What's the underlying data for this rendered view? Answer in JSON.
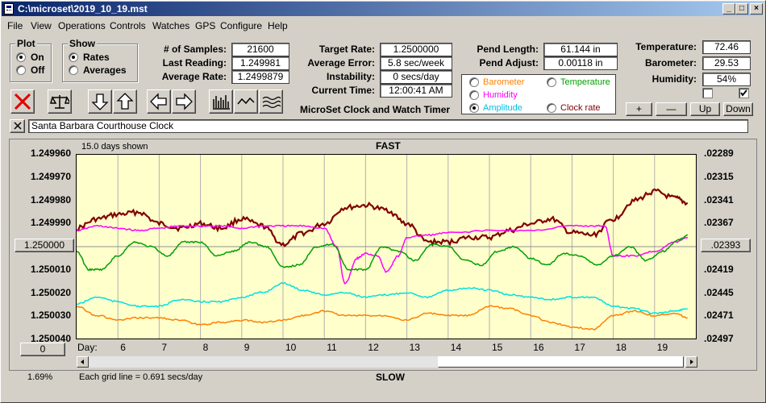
{
  "window": {
    "title": "C:\\microset\\2019_10_19.mst",
    "minimize": "_",
    "maximize": "□",
    "close": "×"
  },
  "menu": [
    "File",
    "View",
    "Operations",
    "Controls",
    "Watches",
    "GPS",
    "Configure",
    "Help"
  ],
  "plot_group": {
    "label": "Plot",
    "on": "On",
    "off": "Off",
    "selected": "On"
  },
  "show_group": {
    "label": "Show",
    "rates": "Rates",
    "averages": "Averages",
    "selected": "Rates"
  },
  "stats": {
    "samples_label": "# of Samples:",
    "samples": "21600",
    "last_label": "Last Reading:",
    "last": "1.249981",
    "avg_label": "Average Rate:",
    "avg": "1.2499879"
  },
  "targets": {
    "target_label": "Target Rate:",
    "target": "1.2500000",
    "avgerr_label": "Average Error:",
    "avgerr": "5.8 sec/week",
    "instab_label": "Instability:",
    "instab": "0 secs/day",
    "time_label": "Current Time:",
    "time": "12:00:41 AM"
  },
  "app_name": "MicroSet Clock and Watch Timer",
  "pendulum": {
    "length_label": "Pend Length:",
    "length": "61.144 in",
    "adjust_label": "Pend Adjust:",
    "adjust": "0.00118 in"
  },
  "environment": {
    "temp_label": "Temperature:",
    "temp": "72.46",
    "baro_label": "Barometer:",
    "baro": "29.53",
    "hum_label": "Humidity:",
    "hum": "54%"
  },
  "series_select": {
    "barometer": "Barometer",
    "temperature": "Temperature",
    "humidity": "Humidity",
    "amplitude": "Amplitude",
    "clock_rate": "Clock rate",
    "selected": "Amplitude"
  },
  "scale_buttons": {
    "plus": "+",
    "minus": "—",
    "up": "Up",
    "down": "Down"
  },
  "watch_name": "Santa Barbara Courthouse Clock",
  "chart_data": {
    "type": "line",
    "top_label": "15.0 days shown",
    "fast_label": "FAST",
    "slow_label": "SLOW",
    "grid_note": "Each grid line = 0.691 secs/day",
    "left_axis": [
      "1.249960",
      "1.249970",
      "1.249980",
      "1.249990",
      "1.250000",
      "1.250010",
      "1.250020",
      "1.250030",
      "1.250040"
    ],
    "left_center_button": "1.250000",
    "right_axis": [
      ".02289",
      ".02315",
      ".02341",
      ".02367",
      ".02393",
      ".02419",
      ".02445",
      ".02471",
      ".02497"
    ],
    "right_center_button": ".02393",
    "x_label": "Day:",
    "x_ticks": [
      "6",
      "7",
      "8",
      "9",
      "10",
      "11",
      "12",
      "13",
      "14",
      "15",
      "16",
      "17",
      "18",
      "19"
    ],
    "x_range": [
      5,
      20
    ],
    "ylim": [
      1.24996,
      1.25004
    ],
    "zoom": "1.69%",
    "left_bottom_button": "0",
    "series": [
      {
        "name": "Clock rate",
        "color": "#800000",
        "x": [
          5.0,
          5.5,
          6.0,
          6.5,
          7.0,
          7.5,
          8.0,
          8.5,
          9.0,
          9.5,
          10.0,
          10.5,
          11.0,
          11.5,
          12.0,
          12.5,
          13.0,
          13.5,
          14.0,
          14.5,
          15.0,
          15.5,
          16.0,
          16.5,
          17.0,
          17.5,
          18.0,
          18.5,
          19.0,
          19.5,
          19.8
        ],
        "values": [
          1.249992,
          1.249988,
          1.249986,
          1.249985,
          1.24999,
          1.249992,
          1.24999,
          1.249992,
          1.249988,
          1.249991,
          1.249999,
          1.249994,
          1.24999,
          1.249983,
          1.249982,
          1.249984,
          1.24999,
          1.249998,
          1.249998,
          1.249996,
          1.249996,
          1.249993,
          1.24999,
          1.249988,
          1.249994,
          1.249995,
          1.249988,
          1.24998,
          1.249976,
          1.249979,
          1.249981
        ]
      },
      {
        "name": "Humidity",
        "color": "#ff00ff",
        "x": [
          5.0,
          5.5,
          6.0,
          6.5,
          7.0,
          7.5,
          8.0,
          8.5,
          9.0,
          9.5,
          10.0,
          10.5,
          11.0,
          11.3,
          11.5,
          11.8,
          12.0,
          12.3,
          12.5,
          12.8,
          13.0,
          13.5,
          14.0,
          15.0,
          16.0,
          17.0,
          17.5,
          17.8,
          18.0,
          18.5,
          19.0,
          19.5,
          19.8
        ],
        "values": [
          1.249993,
          1.249991,
          1.249992,
          1.249993,
          1.249992,
          1.249991,
          1.249991,
          1.249991,
          1.249992,
          1.249991,
          1.249991,
          1.249991,
          1.249992,
          1.25,
          1.250016,
          1.250005,
          1.250003,
          1.250004,
          1.250011,
          1.250004,
          1.249996,
          1.249995,
          1.249994,
          1.249993,
          1.249993,
          1.249991,
          1.249991,
          1.249991,
          1.250004,
          1.250004,
          1.250002,
          1.249998,
          1.249996
        ]
      },
      {
        "name": "Temperature",
        "color": "#00a000",
        "x": [
          5.0,
          5.3,
          5.6,
          6.0,
          6.4,
          6.8,
          7.2,
          7.6,
          8.0,
          8.4,
          8.8,
          9.2,
          9.6,
          10.0,
          10.4,
          10.8,
          11.2,
          11.6,
          12.0,
          12.4,
          12.8,
          13.2,
          13.6,
          14.0,
          14.4,
          14.8,
          15.2,
          15.6,
          16.0,
          16.4,
          16.8,
          17.2,
          17.6,
          18.0,
          18.4,
          18.8,
          19.2,
          19.6,
          19.8
        ],
        "values": [
          1.250002,
          1.25001,
          1.25001,
          1.250004,
          1.249998,
          1.25,
          1.250004,
          1.249998,
          1.249998,
          1.250004,
          1.250002,
          1.249998,
          1.25,
          1.250009,
          1.250008,
          1.25,
          1.249999,
          1.25001,
          1.25001,
          1.25,
          1.250002,
          1.250006,
          1.249999,
          1.25,
          1.250006,
          1.250008,
          1.250002,
          1.25,
          1.250005,
          1.250008,
          1.250003,
          1.250004,
          1.250008,
          1.250004,
          1.25,
          1.250006,
          1.250002,
          1.249997,
          1.249995
        ]
      },
      {
        "name": "Amplitude",
        "color": "#00e0e0",
        "x": [
          5.0,
          5.5,
          6.0,
          6.5,
          7.0,
          7.5,
          8.0,
          8.5,
          9.0,
          9.5,
          10.0,
          10.5,
          11.0,
          11.5,
          12.0,
          12.5,
          13.0,
          13.5,
          14.0,
          14.5,
          15.0,
          15.5,
          16.0,
          16.5,
          17.0,
          17.5,
          18.0,
          18.5,
          19.0,
          19.5,
          19.8
        ],
        "values": [
          1.250025,
          1.250022,
          1.250024,
          1.250026,
          1.250026,
          1.250023,
          1.250024,
          1.250024,
          1.250022,
          1.25002,
          1.250016,
          1.250019,
          1.250021,
          1.25002,
          1.250022,
          1.250021,
          1.25002,
          1.250022,
          1.250019,
          1.250018,
          1.250019,
          1.250021,
          1.250022,
          1.250023,
          1.250022,
          1.250022,
          1.250026,
          1.250027,
          1.250029,
          1.250028,
          1.250027
        ]
      },
      {
        "name": "Barometer",
        "color": "#ff8000",
        "x": [
          5.0,
          5.5,
          6.0,
          6.5,
          7.0,
          7.5,
          8.0,
          8.5,
          9.0,
          9.5,
          10.0,
          10.5,
          11.0,
          11.5,
          12.0,
          12.5,
          13.0,
          13.5,
          14.0,
          14.5,
          15.0,
          15.5,
          16.0,
          16.5,
          17.0,
          17.5,
          18.0,
          18.5,
          19.0,
          19.5,
          19.8
        ],
        "values": [
          1.250026,
          1.25003,
          1.250032,
          1.250031,
          1.250031,
          1.250032,
          1.250034,
          1.250033,
          1.250032,
          1.250033,
          1.250032,
          1.25003,
          1.250028,
          1.25003,
          1.25003,
          1.25003,
          1.250032,
          1.250029,
          1.25003,
          1.25003,
          1.250026,
          1.250027,
          1.25003,
          1.250033,
          1.250035,
          1.250036,
          1.25003,
          1.250028,
          1.25003,
          1.250029,
          1.250031
        ]
      }
    ]
  }
}
